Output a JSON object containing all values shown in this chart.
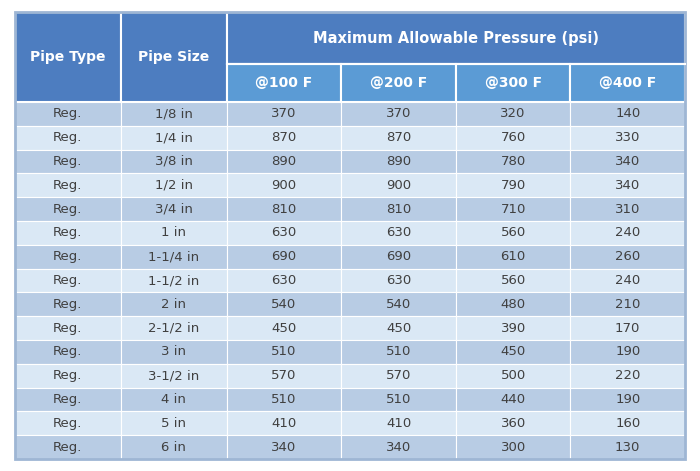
{
  "header_main": "Maximum Allowable Pressure (psi)",
  "sub_headers": [
    "@100 F",
    "@200 F",
    "@300 F",
    "@400 F"
  ],
  "rows": [
    [
      "Reg.",
      "1/8 in",
      "370",
      "370",
      "320",
      "140"
    ],
    [
      "Reg.",
      "1/4 in",
      "870",
      "870",
      "760",
      "330"
    ],
    [
      "Reg.",
      "3/8 in",
      "890",
      "890",
      "780",
      "340"
    ],
    [
      "Reg.",
      "1/2 in",
      "900",
      "900",
      "790",
      "340"
    ],
    [
      "Reg.",
      "3/4 in",
      "810",
      "810",
      "710",
      "310"
    ],
    [
      "Reg.",
      "1 in",
      "630",
      "630",
      "560",
      "240"
    ],
    [
      "Reg.",
      "1-1/4 in",
      "690",
      "690",
      "610",
      "260"
    ],
    [
      "Reg.",
      "1-1/2 in",
      "630",
      "630",
      "560",
      "240"
    ],
    [
      "Reg.",
      "2 in",
      "540",
      "540",
      "480",
      "210"
    ],
    [
      "Reg.",
      "2-1/2 in",
      "450",
      "450",
      "390",
      "170"
    ],
    [
      "Reg.",
      "3 in",
      "510",
      "510",
      "450",
      "190"
    ],
    [
      "Reg.",
      "3-1/2 in",
      "570",
      "570",
      "500",
      "220"
    ],
    [
      "Reg.",
      "4 in",
      "510",
      "510",
      "440",
      "190"
    ],
    [
      "Reg.",
      "5 in",
      "410",
      "410",
      "360",
      "160"
    ],
    [
      "Reg.",
      "6 in",
      "340",
      "340",
      "300",
      "130"
    ]
  ],
  "header_bg": "#4D7DC0",
  "header_text": "#FFFFFF",
  "subheader_bg": "#5B9BD5",
  "row_even_bg": "#B8CCE4",
  "row_odd_bg": "#DAE8F5",
  "body_text": "#404040",
  "border_color": "#FFFFFF",
  "outer_bg": "#FFFFFF",
  "table_outer_border": "#9EB6D4",
  "figw": 7.0,
  "figh": 4.71,
  "dpi": 100
}
